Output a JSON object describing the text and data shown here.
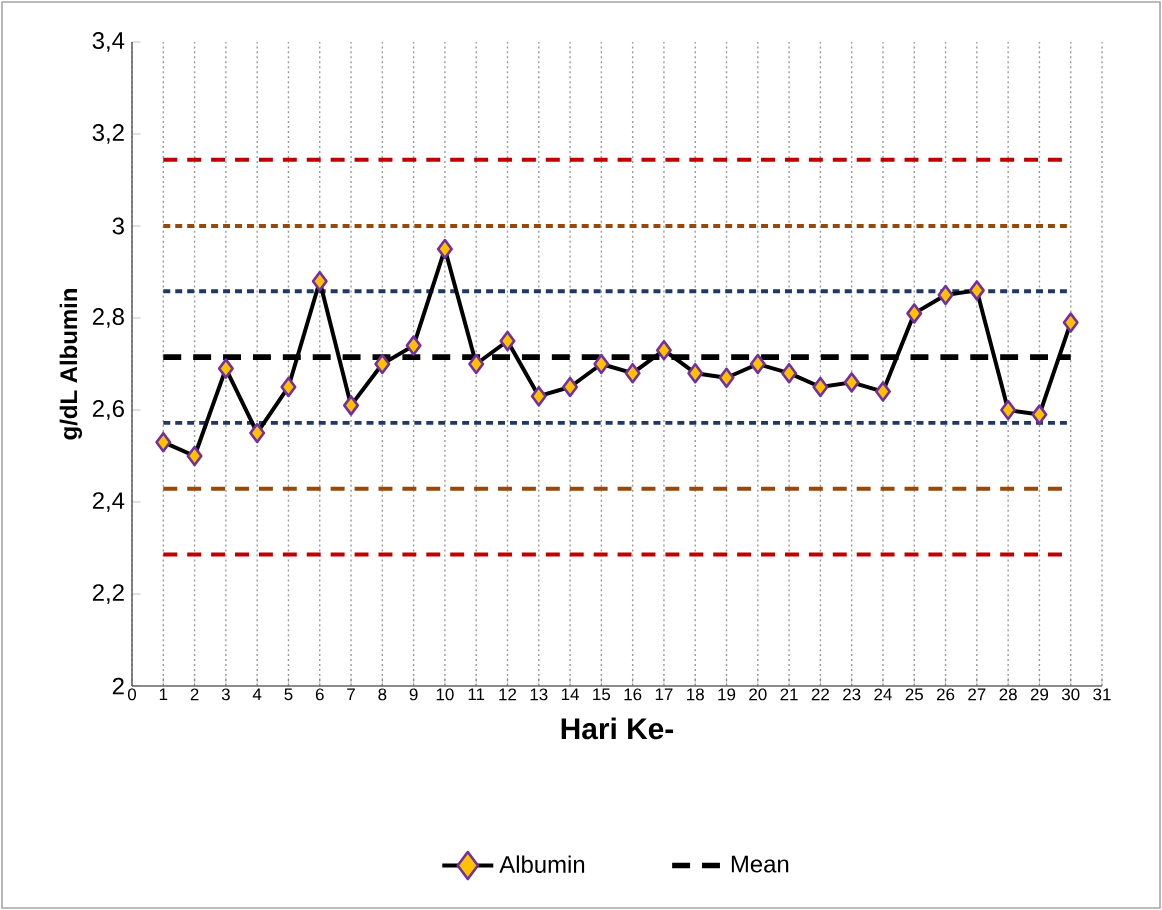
{
  "chart_data": {
    "type": "line",
    "xlabel": "Hari Ke-",
    "ylabel": "g/dL Albumin",
    "categories": [
      "0",
      "1",
      "2",
      "3",
      "4",
      "5",
      "6",
      "7",
      "8",
      "9",
      "10",
      "11",
      "12",
      "13",
      "14",
      "15",
      "16",
      "17",
      "18",
      "19",
      "20",
      "21",
      "22",
      "23",
      "24",
      "25",
      "26",
      "27",
      "28",
      "29",
      "30",
      "31"
    ],
    "series": [
      {
        "name": "Albumin",
        "color": "#000000",
        "values": [
          null,
          2.53,
          2.5,
          2.69,
          2.55,
          2.65,
          2.88,
          2.61,
          2.7,
          2.74,
          2.95,
          2.7,
          2.75,
          2.63,
          2.65,
          2.7,
          2.68,
          2.73,
          2.68,
          2.67,
          2.7,
          2.68,
          2.65,
          2.66,
          2.64,
          2.81,
          2.85,
          2.86,
          2.6,
          2.59,
          2.79,
          null
        ]
      },
      {
        "name": "Mean",
        "color": "#000000",
        "marker": "none",
        "line_style": "dashed",
        "values": [
          null,
          2.715,
          2.715,
          2.715,
          2.715,
          2.715,
          2.715,
          2.715,
          2.715,
          2.715,
          2.715,
          2.715,
          2.715,
          2.715,
          2.715,
          2.715,
          2.715,
          2.715,
          2.715,
          2.715,
          2.715,
          2.715,
          2.715,
          2.715,
          2.715,
          2.715,
          2.715,
          2.715,
          2.715,
          2.715,
          2.715,
          null
        ]
      }
    ],
    "ref_lines": [
      {
        "axis": "y",
        "value": 3.144,
        "color": "#c00000",
        "line_style": "dashed"
      },
      {
        "axis": "y",
        "value": 3.0,
        "color": "#984807",
        "line_style": "dotted"
      },
      {
        "axis": "y",
        "value": 2.858,
        "color": "#1f3864",
        "line_style": "dotted"
      },
      {
        "axis": "y",
        "value": 2.572,
        "color": "#1f3864",
        "line_style": "dotted"
      },
      {
        "axis": "y",
        "value": 2.429,
        "color": "#984807",
        "line_style": "dashed"
      },
      {
        "axis": "y",
        "value": 2.286,
        "color": "#c00000",
        "line_style": "dashed"
      }
    ],
    "ylim": [
      2,
      3.4
    ],
    "yticks": [
      2,
      {
        "value": 2.2,
        "label": "2,2"
      },
      {
        "value": 2.4,
        "label": "2,4"
      },
      {
        "value": 2.6,
        "label": "2,6"
      },
      {
        "value": 2.8,
        "label": "2,8"
      },
      3,
      {
        "value": 3.2,
        "label": "3,2"
      },
      {
        "value": 3.4,
        "label": "3,4"
      }
    ],
    "grid": "x",
    "legend": "bottom",
    "marker": "diamond"
  }
}
